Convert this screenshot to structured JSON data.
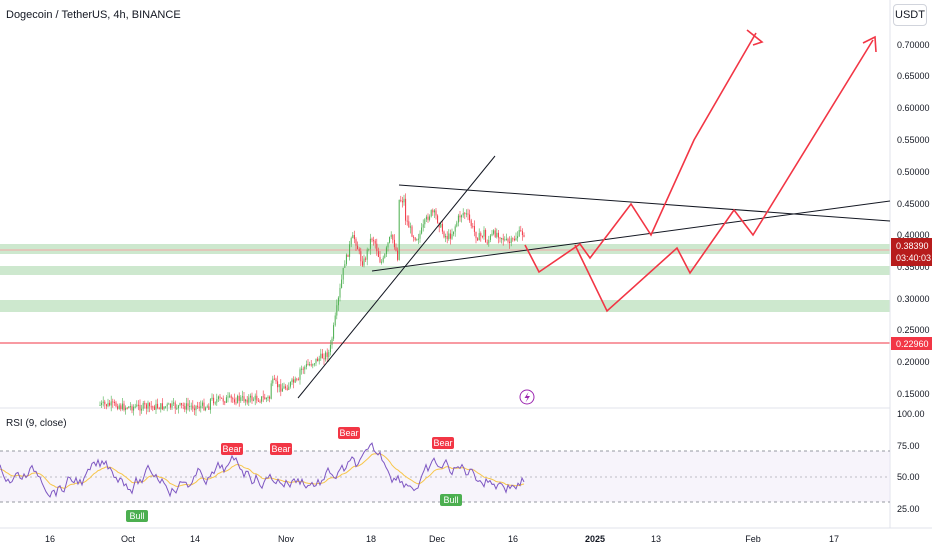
{
  "header": {
    "symbol_title": "Dogecoin / TetherUS, 4h, BINANCE",
    "currency_button": "USDT"
  },
  "price_axis": {
    "ticks": [
      "0.70000",
      "0.65000",
      "0.60000",
      "0.55000",
      "0.50000",
      "0.45000",
      "0.40000",
      "0.35000",
      "0.30000",
      "0.25000",
      "0.20000",
      "0.15000"
    ],
    "current_price": "0.38390",
    "countdown": "03:40:03",
    "marked_level": "0.22960"
  },
  "rsi": {
    "label": "RSI (9, close)",
    "ticks": [
      "100.00",
      "75.00",
      "50.00",
      "25.00"
    ],
    "signals": [
      {
        "type": "Bull",
        "color": "#4caf50"
      },
      {
        "type": "Bear",
        "color": "#f23645"
      },
      {
        "type": "Bear",
        "color": "#f23645"
      },
      {
        "type": "Bear",
        "color": "#f23645"
      },
      {
        "type": "Bear",
        "color": "#f23645"
      },
      {
        "type": "Bull",
        "color": "#4caf50"
      }
    ]
  },
  "time_axis": {
    "labels": [
      "16",
      "Oct",
      "14",
      "Nov",
      "18",
      "Dec",
      "16",
      "2025",
      "13",
      "Feb",
      "17"
    ]
  },
  "colors": {
    "bull": "#4caf50",
    "bear": "#f23645",
    "projection": "#f23645",
    "support_zone": "#c8e6c9",
    "rsi_line": "#7e57c2",
    "rsi_ma": "#f7c64a",
    "marked_level_line": "#f23645",
    "current_price_bg": "#b71c1c"
  },
  "icons": {
    "lightning": "lightning-icon"
  }
}
